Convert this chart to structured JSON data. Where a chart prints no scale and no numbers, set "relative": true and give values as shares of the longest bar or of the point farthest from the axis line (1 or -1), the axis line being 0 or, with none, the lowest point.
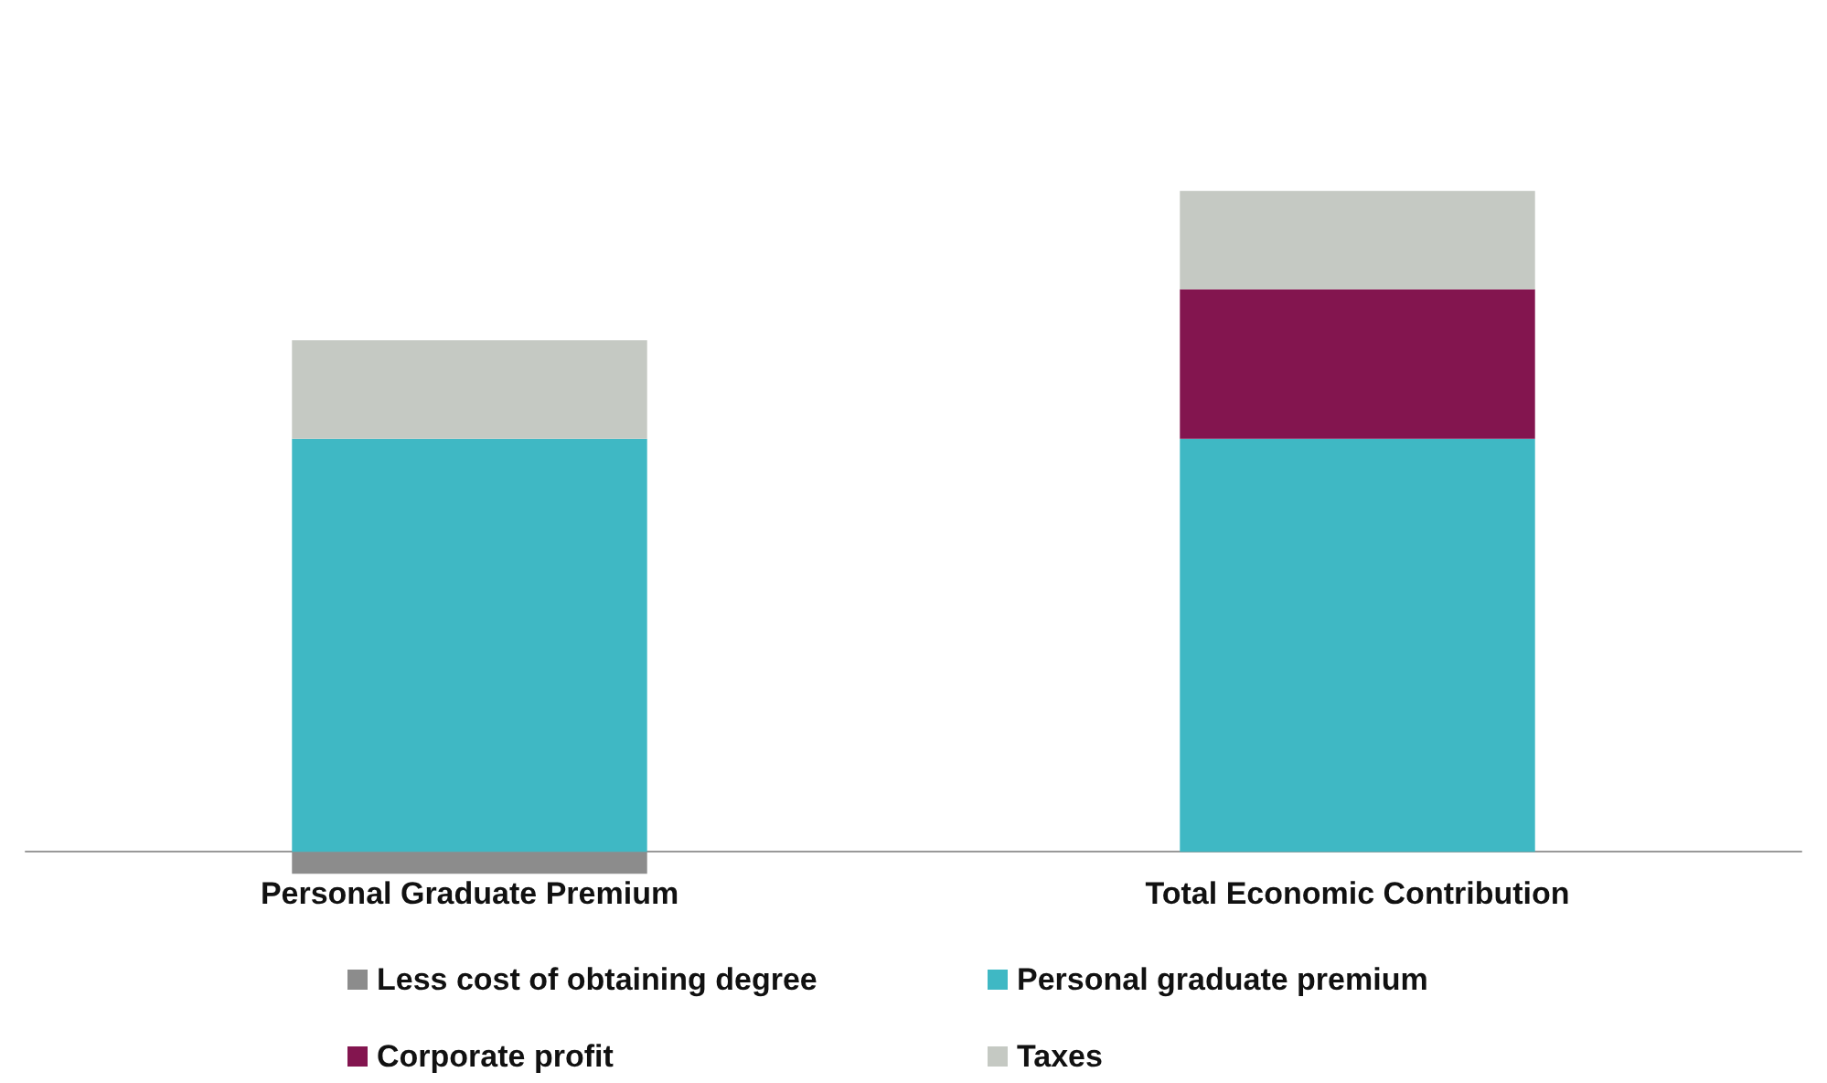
{
  "chart_data": {
    "type": "bar",
    "stacked": true,
    "relative": true,
    "categories": [
      "Personal Graduate Premium",
      "Total Economic Contribution"
    ],
    "series": [
      {
        "name": "Less cost of obtaining degree",
        "color": "#8c8c8c",
        "values": [
          -0.033,
          0
        ]
      },
      {
        "name": "Personal graduate premium",
        "color": "#3fb8c4",
        "values": [
          0.625,
          0.625
        ]
      },
      {
        "name": "Corporate profit",
        "color": "#83154f",
        "values": [
          0,
          0.226
        ]
      },
      {
        "name": "Taxes",
        "color": "#c5c9c3",
        "values": [
          0.149,
          0.149
        ]
      }
    ],
    "legend": "bottom"
  }
}
